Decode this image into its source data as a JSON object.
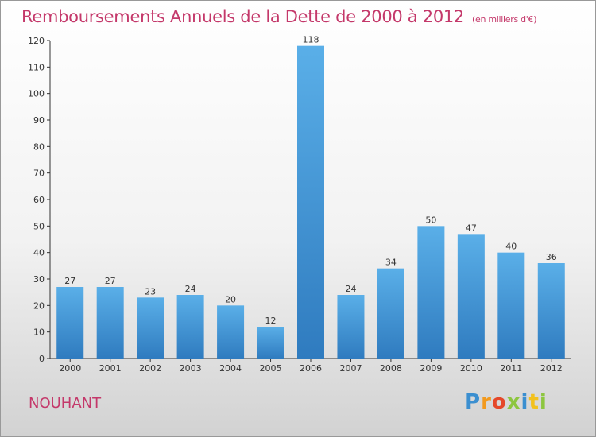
{
  "header": {
    "title": "Remboursements Annuels de la Dette de 2000 à 2012",
    "unit": "(en milliers d'€)"
  },
  "footer": {
    "commune": "NOUHANT",
    "logo": "Proxiti"
  },
  "colors": {
    "title": "#c4386a",
    "bar_top": "#5aafe8",
    "bar_bottom": "#2f7bbf"
  },
  "chart_data": {
    "type": "bar",
    "title": "Remboursements Annuels de la Dette de 2000 à 2012",
    "subtitle": "(en milliers d'€)",
    "categories": [
      "2000",
      "2001",
      "2002",
      "2003",
      "2004",
      "2005",
      "2006",
      "2007",
      "2008",
      "2009",
      "2010",
      "2011",
      "2012"
    ],
    "values": [
      27,
      27,
      23,
      24,
      20,
      12,
      118,
      24,
      34,
      50,
      47,
      40,
      36
    ],
    "ylim": [
      0,
      120
    ],
    "yticks": [
      0,
      10,
      20,
      30,
      40,
      50,
      60,
      70,
      80,
      90,
      100,
      110,
      120
    ],
    "grid": false,
    "legend": "none"
  }
}
